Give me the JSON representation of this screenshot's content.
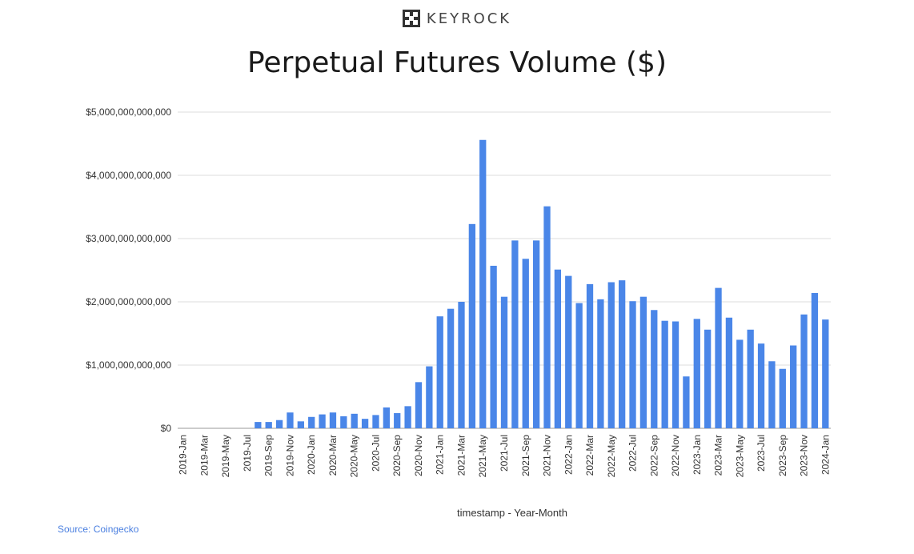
{
  "brand": {
    "name": "KEYROCK",
    "logo_icon": "keyrock-logo-icon"
  },
  "source": "Source: Coingecko",
  "chart_data": {
    "type": "bar",
    "title": "Perpetual Futures Volume ($)",
    "xlabel": "timestamp - Year-Month",
    "ylabel": "",
    "ylim": [
      0,
      5000000000000
    ],
    "yticks": [
      {
        "value": 0,
        "label": "$0"
      },
      {
        "value": 1000000000000,
        "label": "$1,000,000,000,000"
      },
      {
        "value": 2000000000000,
        "label": "$2,000,000,000,000"
      },
      {
        "value": 3000000000000,
        "label": "$3,000,000,000,000"
      },
      {
        "value": 4000000000000,
        "label": "$4,000,000,000,000"
      },
      {
        "value": 5000000000000,
        "label": "$5,000,000,000,000"
      }
    ],
    "grid": true,
    "bar_color": "#4a86e8",
    "categories": [
      "2019-Jan",
      "2019-Feb",
      "2019-Mar",
      "2019-Apr",
      "2019-May",
      "2019-Jun",
      "2019-Jul",
      "2019-Aug",
      "2019-Sep",
      "2019-Oct",
      "2019-Nov",
      "2019-Dec",
      "2020-Jan",
      "2020-Feb",
      "2020-Mar",
      "2020-Apr",
      "2020-May",
      "2020-Jun",
      "2020-Jul",
      "2020-Aug",
      "2020-Sep",
      "2020-Oct",
      "2020-Nov",
      "2020-Dec",
      "2021-Jan",
      "2021-Feb",
      "2021-Mar",
      "2021-Apr",
      "2021-May",
      "2021-Jun",
      "2021-Jul",
      "2021-Aug",
      "2021-Sep",
      "2021-Oct",
      "2021-Nov",
      "2021-Dec",
      "2022-Jan",
      "2022-Feb",
      "2022-Mar",
      "2022-Apr",
      "2022-May",
      "2022-Jun",
      "2022-Jul",
      "2022-Aug",
      "2022-Sep",
      "2022-Oct",
      "2022-Nov",
      "2022-Dec",
      "2023-Jan",
      "2023-Feb",
      "2023-Mar",
      "2023-Apr",
      "2023-May",
      "2023-Jun",
      "2023-Jul",
      "2023-Aug",
      "2023-Sep",
      "2023-Oct",
      "2023-Nov",
      "2023-Dec",
      "2024-Jan"
    ],
    "tick_labels_shown": [
      "2019-Jan",
      "2019-Mar",
      "2019-May",
      "2019-Jul",
      "2019-Sep",
      "2019-Nov",
      "2020-Jan",
      "2020-Mar",
      "2020-May",
      "2020-Jul",
      "2020-Sep",
      "2020-Nov",
      "2021-Jan",
      "2021-Mar",
      "2021-May",
      "2021-Jul",
      "2021-Sep",
      "2021-Nov",
      "2022-Jan",
      "2022-Mar",
      "2022-May",
      "2022-Jul",
      "2022-Sep",
      "2022-Nov",
      "2023-Jan",
      "2023-Mar",
      "2023-May",
      "2023-Jul",
      "2023-Sep",
      "2023-Nov",
      "2024-Jan"
    ],
    "values": [
      0,
      0,
      0,
      0,
      0,
      0,
      0,
      100000000000,
      100000000000,
      130000000000,
      250000000000,
      110000000000,
      180000000000,
      220000000000,
      250000000000,
      190000000000,
      230000000000,
      150000000000,
      210000000000,
      330000000000,
      240000000000,
      350000000000,
      730000000000,
      980000000000,
      1770000000000,
      1890000000000,
      2000000000000,
      3230000000000,
      4560000000000,
      2570000000000,
      2080000000000,
      2970000000000,
      2680000000000,
      2970000000000,
      3510000000000,
      2510000000000,
      2410000000000,
      1980000000000,
      2280000000000,
      2040000000000,
      2310000000000,
      2340000000000,
      2010000000000,
      2080000000000,
      1870000000000,
      1700000000000,
      1690000000000,
      820000000000,
      1730000000000,
      1560000000000,
      2220000000000,
      1750000000000,
      1400000000000,
      1560000000000,
      1340000000000,
      1060000000000,
      940000000000,
      1310000000000,
      1800000000000,
      2140000000000,
      1720000000000
    ]
  }
}
